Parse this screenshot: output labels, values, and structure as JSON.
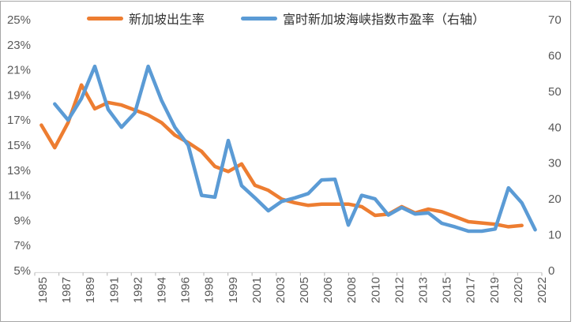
{
  "chart_data": {
    "type": "line",
    "title": "",
    "x": [
      1985,
      1986,
      1987,
      1988,
      1989,
      1990,
      1991,
      1992,
      1993,
      1994,
      1995,
      1996,
      1997,
      1998,
      1999,
      2000,
      2001,
      2002,
      2003,
      2004,
      2005,
      2006,
      2007,
      2008,
      2009,
      2010,
      2011,
      2012,
      2013,
      2014,
      2015,
      2016,
      2017,
      2018,
      2019,
      2020,
      2021,
      2022
    ],
    "x_tick_labels": [
      "1985",
      "1987",
      "1989",
      "1991",
      "1992",
      "1994",
      "1996",
      "1998",
      "1999",
      "2001",
      "2003",
      "2005",
      "2006",
      "2008",
      "2010",
      "2012",
      "2013",
      "2015",
      "2017",
      "2019",
      "2020",
      "2022"
    ],
    "left_axis": {
      "min": 5,
      "max": 25,
      "step": 2,
      "labels": [
        "25%",
        "23%",
        "21%",
        "19%",
        "17%",
        "15%",
        "13%",
        "11%",
        "9%",
        "7%",
        "5%"
      ]
    },
    "right_axis": {
      "min": 0,
      "max": 70,
      "step": 10,
      "labels": [
        "70",
        "60",
        "50",
        "40",
        "30",
        "20",
        "10",
        "0"
      ]
    },
    "series": [
      {
        "name": "新加坡出生率",
        "axis": "left",
        "color": "#ED7D31",
        "values": [
          16.6,
          14.8,
          16.8,
          19.8,
          17.9,
          18.4,
          18.2,
          17.8,
          17.4,
          16.8,
          15.8,
          15.2,
          14.5,
          13.3,
          12.9,
          13.5,
          11.8,
          11.4,
          10.7,
          10.4,
          10.2,
          10.3,
          10.3,
          10.3,
          10.1,
          9.4,
          9.5,
          10.1,
          9.6,
          9.9,
          9.7,
          9.3,
          8.9,
          8.8,
          8.7,
          8.5,
          8.6,
          null
        ]
      },
      {
        "name": "富时新加坡海峡指数市盈率（右轴）",
        "axis": "right",
        "color": "#5B9BD5",
        "values": [
          null,
          46.5,
          42,
          48,
          57,
          45,
          40,
          44,
          57,
          47.5,
          40,
          35,
          21,
          20.5,
          36.3,
          23.7,
          20.3,
          16.7,
          19.3,
          20.3,
          21.5,
          25.3,
          25.5,
          12.7,
          21,
          20,
          15.5,
          17.6,
          15.8,
          16.1,
          13.2,
          12.2,
          11,
          11,
          11.6,
          23.1,
          18.9,
          11.4
        ]
      }
    ],
    "legend_position": "top",
    "grid": false
  },
  "colors": {
    "background": "#FFFFFF",
    "frame_border": "#A6A6A6",
    "axis_line": "#D9D9D9",
    "tick": "#BFBFBF",
    "axis_label": "#595959",
    "legend_text": "#333333",
    "birth_rate_line": "#ED7D31",
    "pe_ratio_line": "#5B9BD5"
  }
}
